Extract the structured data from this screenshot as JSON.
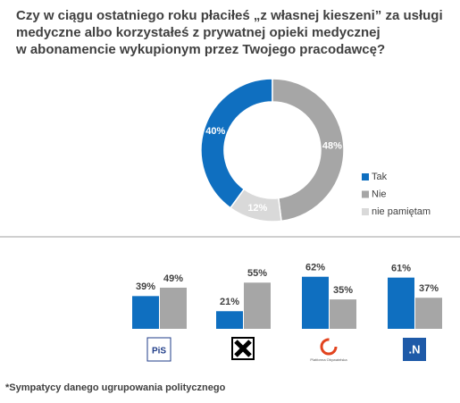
{
  "title": "Czy w ciągu ostatniego roku płaciłeś „z własnej kieszeni” za usługi\nmedyczne albo korzystałeś z prywatnej opieki medycznej\nw abonamencie wykupionym przez Twojego pracodawcę?",
  "chart_data": [
    {
      "type": "donut",
      "categories": [
        "Tak",
        "Nie",
        "nie pamiętam"
      ],
      "values": [
        40,
        48,
        12
      ],
      "value_labels": [
        "40%",
        "48%",
        "12%"
      ],
      "colors": [
        "#0f6fc0",
        "#a6a6a6",
        "#d9d9d9"
      ],
      "legend": "right"
    },
    {
      "type": "bar",
      "categories": [
        "PiS",
        null,
        "Platforma Obywatelska",
        ".N"
      ],
      "series": [
        {
          "color": "#0f6fc0",
          "values": [
            39,
            21,
            62,
            61
          ],
          "value_labels": [
            "39%",
            "21%",
            "62%",
            "61%"
          ]
        },
        {
          "color": "#a6a6a6",
          "values": [
            49,
            55,
            35,
            37
          ],
          "value_labels": [
            "49%",
            "55%",
            "35%",
            "37%"
          ]
        }
      ]
    }
  ],
  "footnote": "*Sympatycy danego ugrupowania politycznego"
}
